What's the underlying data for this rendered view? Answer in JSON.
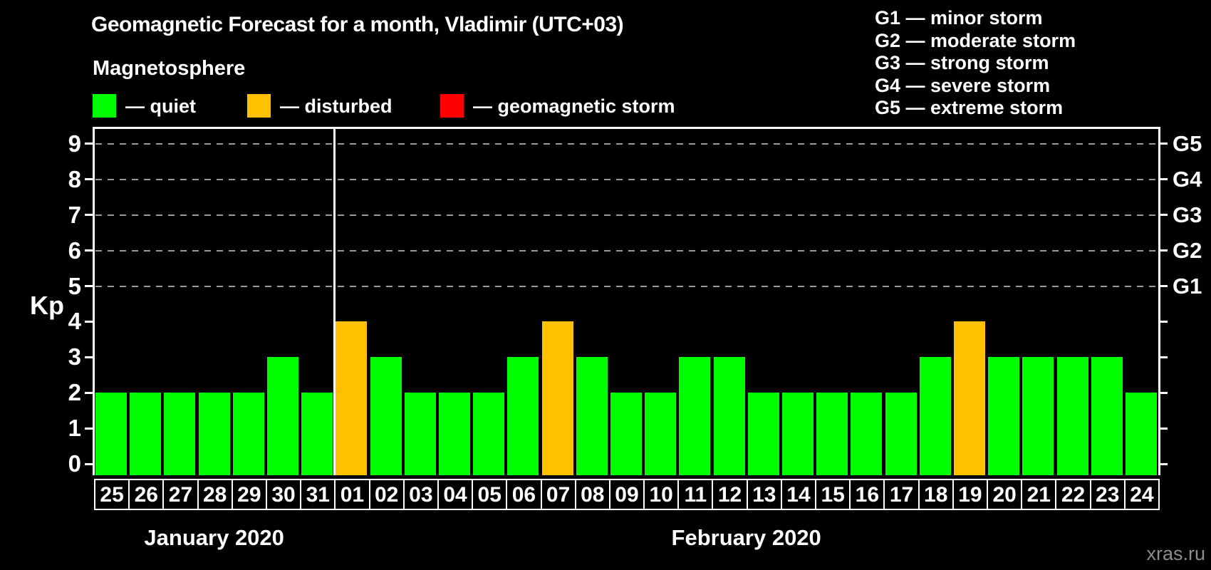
{
  "title": "Geomagnetic Forecast for a month, Vladimir (UTC+03)",
  "subtitle": "Magnetosphere",
  "legend": {
    "items": [
      {
        "key": "quiet",
        "label": "— quiet",
        "color": "#00ff00"
      },
      {
        "key": "disturbed",
        "label": "— disturbed",
        "color": "#ffc000"
      },
      {
        "key": "storm",
        "label": "— geomagnetic storm",
        "color": "#ff0000"
      }
    ]
  },
  "storm_scale_legend": {
    "items": [
      {
        "text": "G1 — minor storm"
      },
      {
        "text": "G2 — moderate storm"
      },
      {
        "text": "G3 — strong storm"
      },
      {
        "text": "G4 — severe storm"
      },
      {
        "text": "G5 — extreme storm"
      }
    ]
  },
  "watermark": "xras.ru",
  "chart_data": {
    "type": "bar",
    "title": "Geomagnetic Forecast for a month, Vladimir (UTC+03)",
    "ylabel": "Kp",
    "ylim": [
      0,
      9.4
    ],
    "yticks": [
      0,
      1,
      2,
      3,
      4,
      5,
      6,
      7,
      8,
      9
    ],
    "grid": "dashed horizontal lines at Kp 5-9 (G1-G5 levels)",
    "legend_position": "top",
    "right_axis_labels": [
      {
        "value": 9,
        "label": "G5"
      },
      {
        "value": 8,
        "label": "G4"
      },
      {
        "value": 7,
        "label": "G3"
      },
      {
        "value": 6,
        "label": "G2"
      },
      {
        "value": 5,
        "label": "G1"
      }
    ],
    "months": [
      {
        "label": "January 2020",
        "days": 7
      },
      {
        "label": "February 2020",
        "days": 24
      }
    ],
    "categories": [
      "25",
      "26",
      "27",
      "28",
      "29",
      "30",
      "31",
      "01",
      "02",
      "03",
      "04",
      "05",
      "06",
      "07",
      "08",
      "09",
      "10",
      "11",
      "12",
      "13",
      "14",
      "15",
      "16",
      "17",
      "18",
      "19",
      "20",
      "21",
      "22",
      "23",
      "24"
    ],
    "values": [
      2,
      2,
      2,
      2,
      2,
      3,
      2,
      4,
      3,
      2,
      2,
      2,
      3,
      4,
      3,
      2,
      2,
      3,
      3,
      2,
      2,
      2,
      2,
      2,
      3,
      4,
      3,
      3,
      3,
      3,
      2
    ],
    "statuses": [
      "quiet",
      "quiet",
      "quiet",
      "quiet",
      "quiet",
      "quiet",
      "quiet",
      "disturbed",
      "quiet",
      "quiet",
      "quiet",
      "quiet",
      "quiet",
      "disturbed",
      "quiet",
      "quiet",
      "quiet",
      "quiet",
      "quiet",
      "quiet",
      "quiet",
      "quiet",
      "quiet",
      "quiet",
      "quiet",
      "disturbed",
      "quiet",
      "quiet",
      "quiet",
      "quiet",
      "quiet"
    ],
    "colors": {
      "quiet": "#00ff00",
      "disturbed": "#ffc000",
      "storm": "#ff0000"
    }
  }
}
